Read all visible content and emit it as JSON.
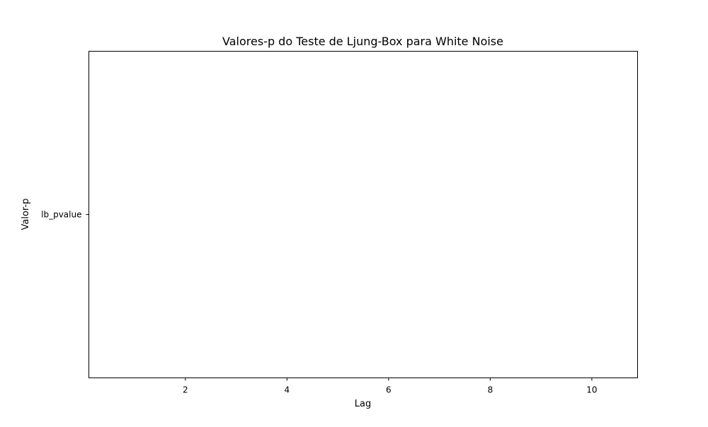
{
  "chart_data": {
    "type": "line",
    "title": "Valores-p do Teste de Ljung-Box para White Noise",
    "xlabel": "Lag",
    "ylabel": "Valor-p",
    "x_ticks": [
      2,
      4,
      6,
      8,
      10
    ],
    "xlim": [
      0.1,
      10.9
    ],
    "y_categories": [
      "lb_pvalue"
    ],
    "series": [],
    "grid": false,
    "legend": "none"
  }
}
